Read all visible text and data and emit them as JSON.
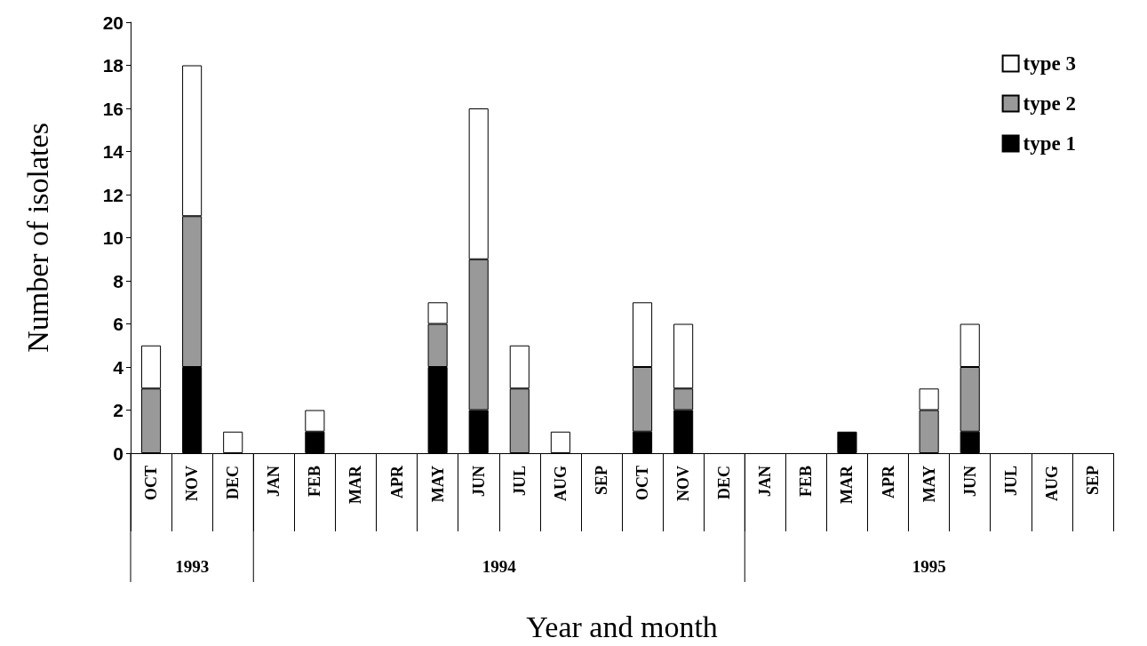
{
  "chart_data": {
    "type": "bar",
    "stacked": true,
    "xlabel": "Year and month",
    "ylabel": "Number of isolates",
    "categories": [
      "OCT",
      "NOV",
      "DEC",
      "JAN",
      "FEB",
      "MAR",
      "APR",
      "MAY",
      "JUN",
      "JUL",
      "AUG",
      "SEP",
      "OCT",
      "NOV",
      "DEC",
      "JAN",
      "FEB",
      "MAR",
      "APR",
      "MAY",
      "JUN",
      "JUL",
      "AUG",
      "SEP"
    ],
    "series": [
      {
        "name": "type 1",
        "color": "#000000",
        "values": [
          0,
          4,
          0,
          0,
          1,
          0,
          0,
          4,
          2,
          0,
          0,
          0,
          1,
          2,
          0,
          0,
          0,
          1,
          0,
          0,
          1,
          0,
          0,
          0
        ]
      },
      {
        "name": "type 2",
        "color": "#999999",
        "values": [
          3,
          7,
          0,
          0,
          0,
          0,
          0,
          2,
          7,
          3,
          0,
          0,
          3,
          1,
          0,
          0,
          0,
          0,
          0,
          2,
          3,
          0,
          0,
          0
        ]
      },
      {
        "name": "type 3",
        "color": "#ffffff",
        "values": [
          2,
          7,
          1,
          0,
          1,
          0,
          0,
          1,
          7,
          2,
          1,
          0,
          3,
          3,
          0,
          0,
          0,
          0,
          0,
          1,
          2,
          0,
          0,
          0
        ]
      }
    ],
    "annotations": [
      "1993",
      "1994",
      "1995"
    ],
    "ylim": [
      0,
      20
    ],
    "yticks": [
      0,
      2,
      4,
      6,
      8,
      10,
      12,
      14,
      16,
      18,
      20
    ],
    "grid": false,
    "legend": "top right"
  }
}
